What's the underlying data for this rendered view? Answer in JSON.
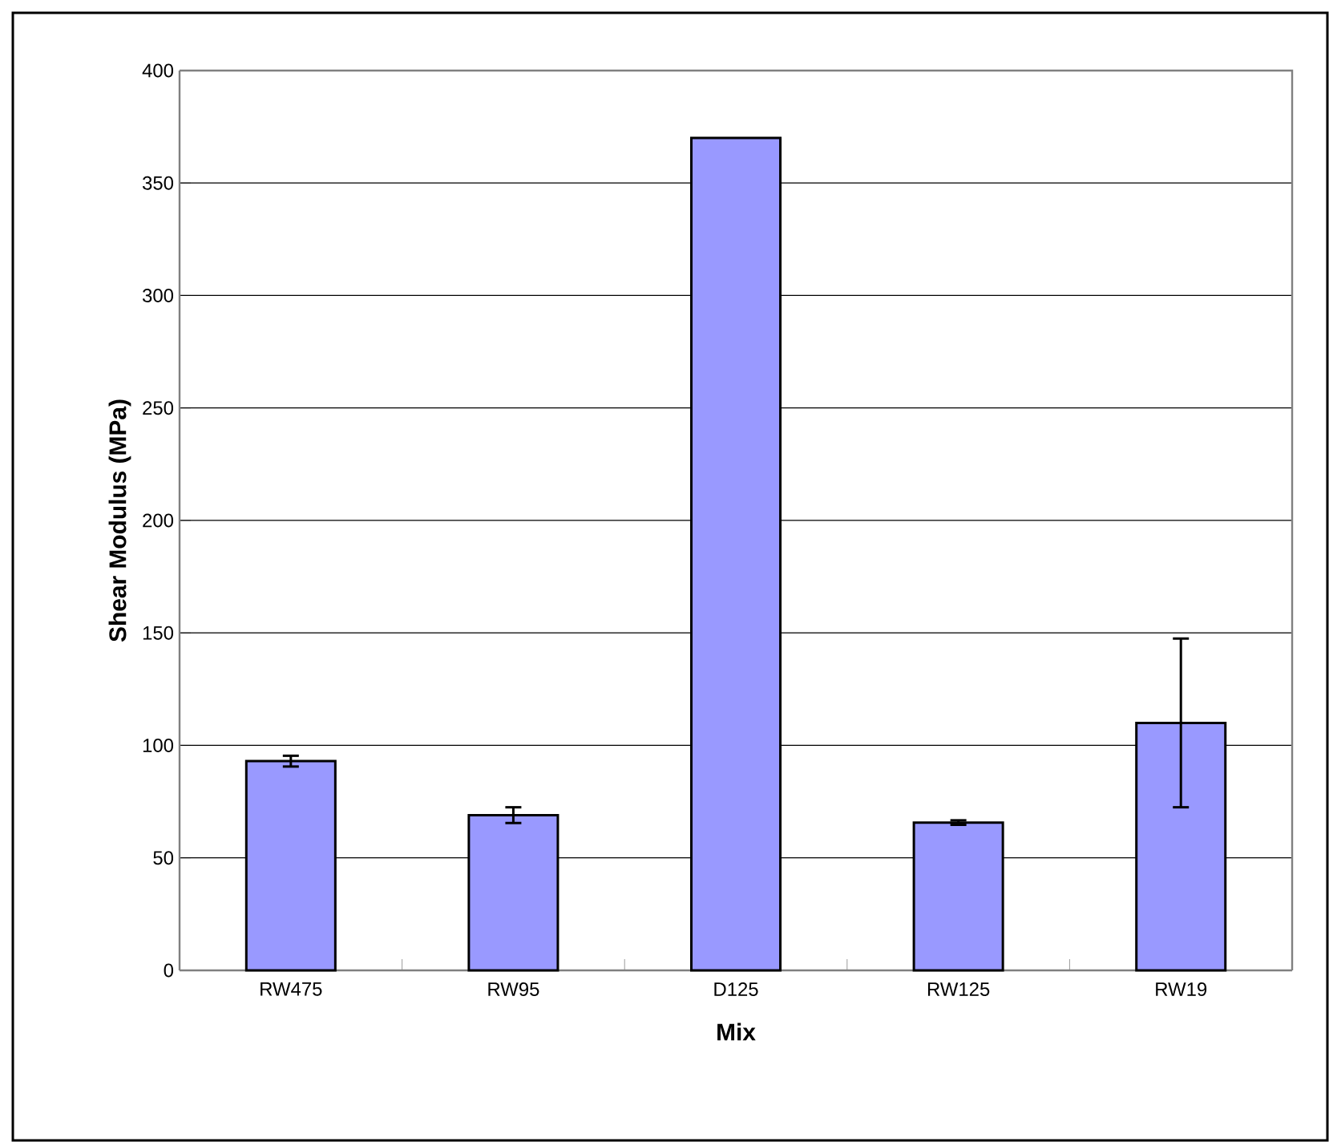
{
  "chart_data": {
    "type": "bar",
    "xlabel": "Mix",
    "ylabel": "Shear Modulus (MPa)",
    "categories": [
      "RW475",
      "RW95",
      "D125",
      "RW125",
      "RW19"
    ],
    "values": [
      93,
      69,
      370,
      65.7,
      110
    ],
    "errors": [
      2.4,
      3.5,
      null,
      1,
      37.5
    ],
    "color": "#9999ff",
    "ylim": [
      0,
      400
    ],
    "yticks": [
      0,
      50,
      100,
      150,
      200,
      250,
      300,
      350,
      400
    ],
    "grid": "y"
  }
}
